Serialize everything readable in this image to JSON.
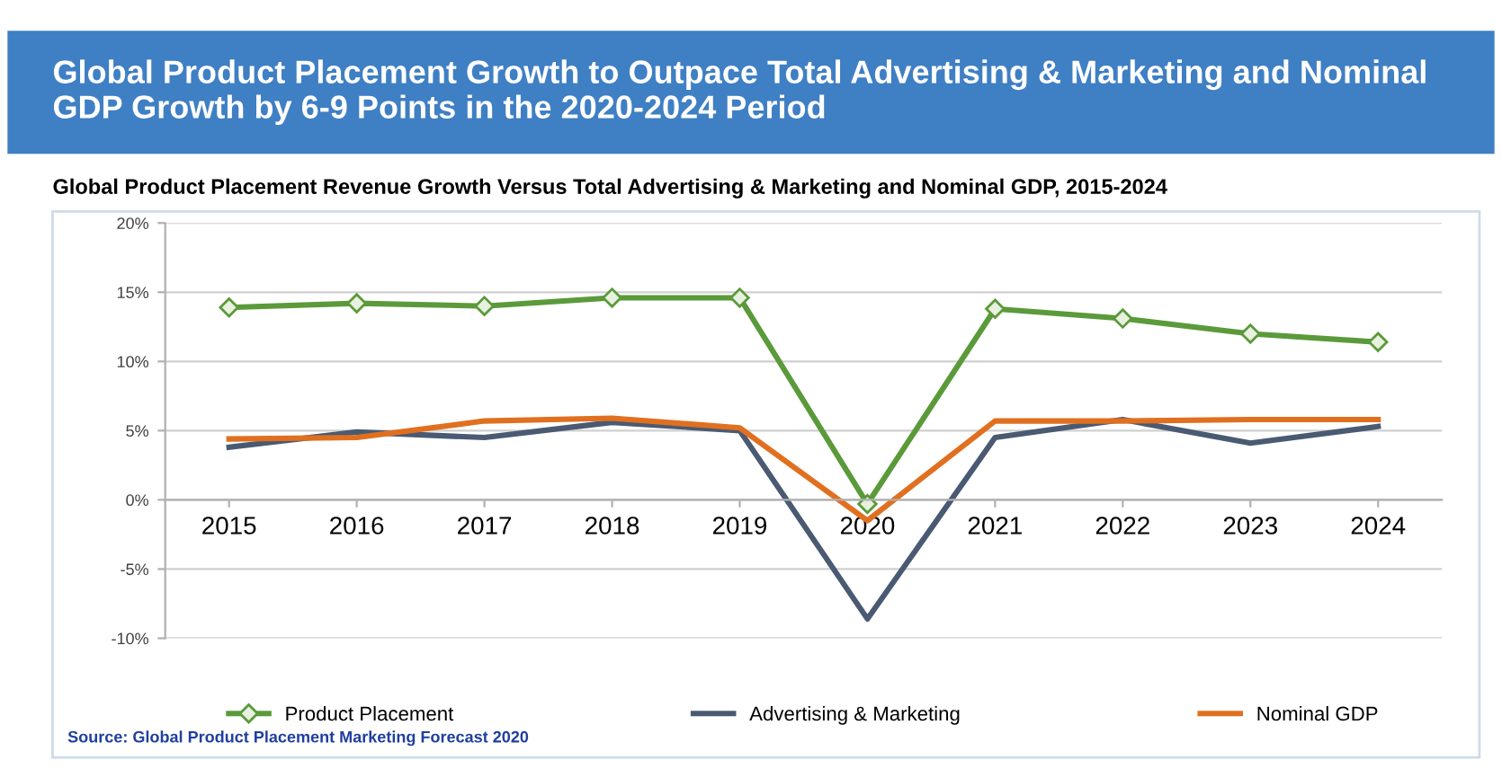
{
  "chart_data": {
    "type": "line",
    "title": "Global Product Placement Growth to Outpace Total Advertising & Marketing and Nominal GDP Growth by 6-9 Points in the 2020-2024 Period",
    "subtitle": "Global Product Placement Revenue Growth Versus Total Advertising & Marketing and Nominal GDP, 2015-2024",
    "categories": [
      "2015",
      "2016",
      "2017",
      "2018",
      "2019",
      "2020",
      "2021",
      "2022",
      "2023",
      "2024"
    ],
    "series": [
      {
        "name": "Product Placement",
        "color": "#5b9a3a",
        "marker": "diamond",
        "values": [
          13.9,
          14.2,
          14.0,
          14.6,
          14.6,
          -0.3,
          13.8,
          13.1,
          12.0,
          11.4
        ]
      },
      {
        "name": "Advertising & Marketing",
        "color": "#4a5a72",
        "values": [
          3.8,
          4.9,
          4.5,
          5.6,
          5.0,
          -8.6,
          4.5,
          5.8,
          4.1,
          5.3
        ]
      },
      {
        "name": "Nominal GDP",
        "color": "#e07020",
        "values": [
          4.4,
          4.5,
          5.7,
          5.9,
          5.2,
          -1.5,
          5.7,
          5.7,
          5.8,
          5.8
        ]
      }
    ],
    "ylim": [
      -10,
      20
    ],
    "yticks": [
      {
        "value": -10,
        "label": "-10%"
      },
      {
        "value": -5,
        "label": "-5%"
      },
      {
        "value": 0,
        "label": "0%"
      },
      {
        "value": 5,
        "label": "5%"
      },
      {
        "value": 10,
        "label": "10%"
      },
      {
        "value": 15,
        "label": "15%"
      },
      {
        "value": 20,
        "label": "20%"
      }
    ],
    "grid": "y",
    "legend": "bottom",
    "marker": "none",
    "line_style": "solid",
    "annotations": [
      "Source: Global Product Placement Marketing Forecast 2020"
    ]
  }
}
